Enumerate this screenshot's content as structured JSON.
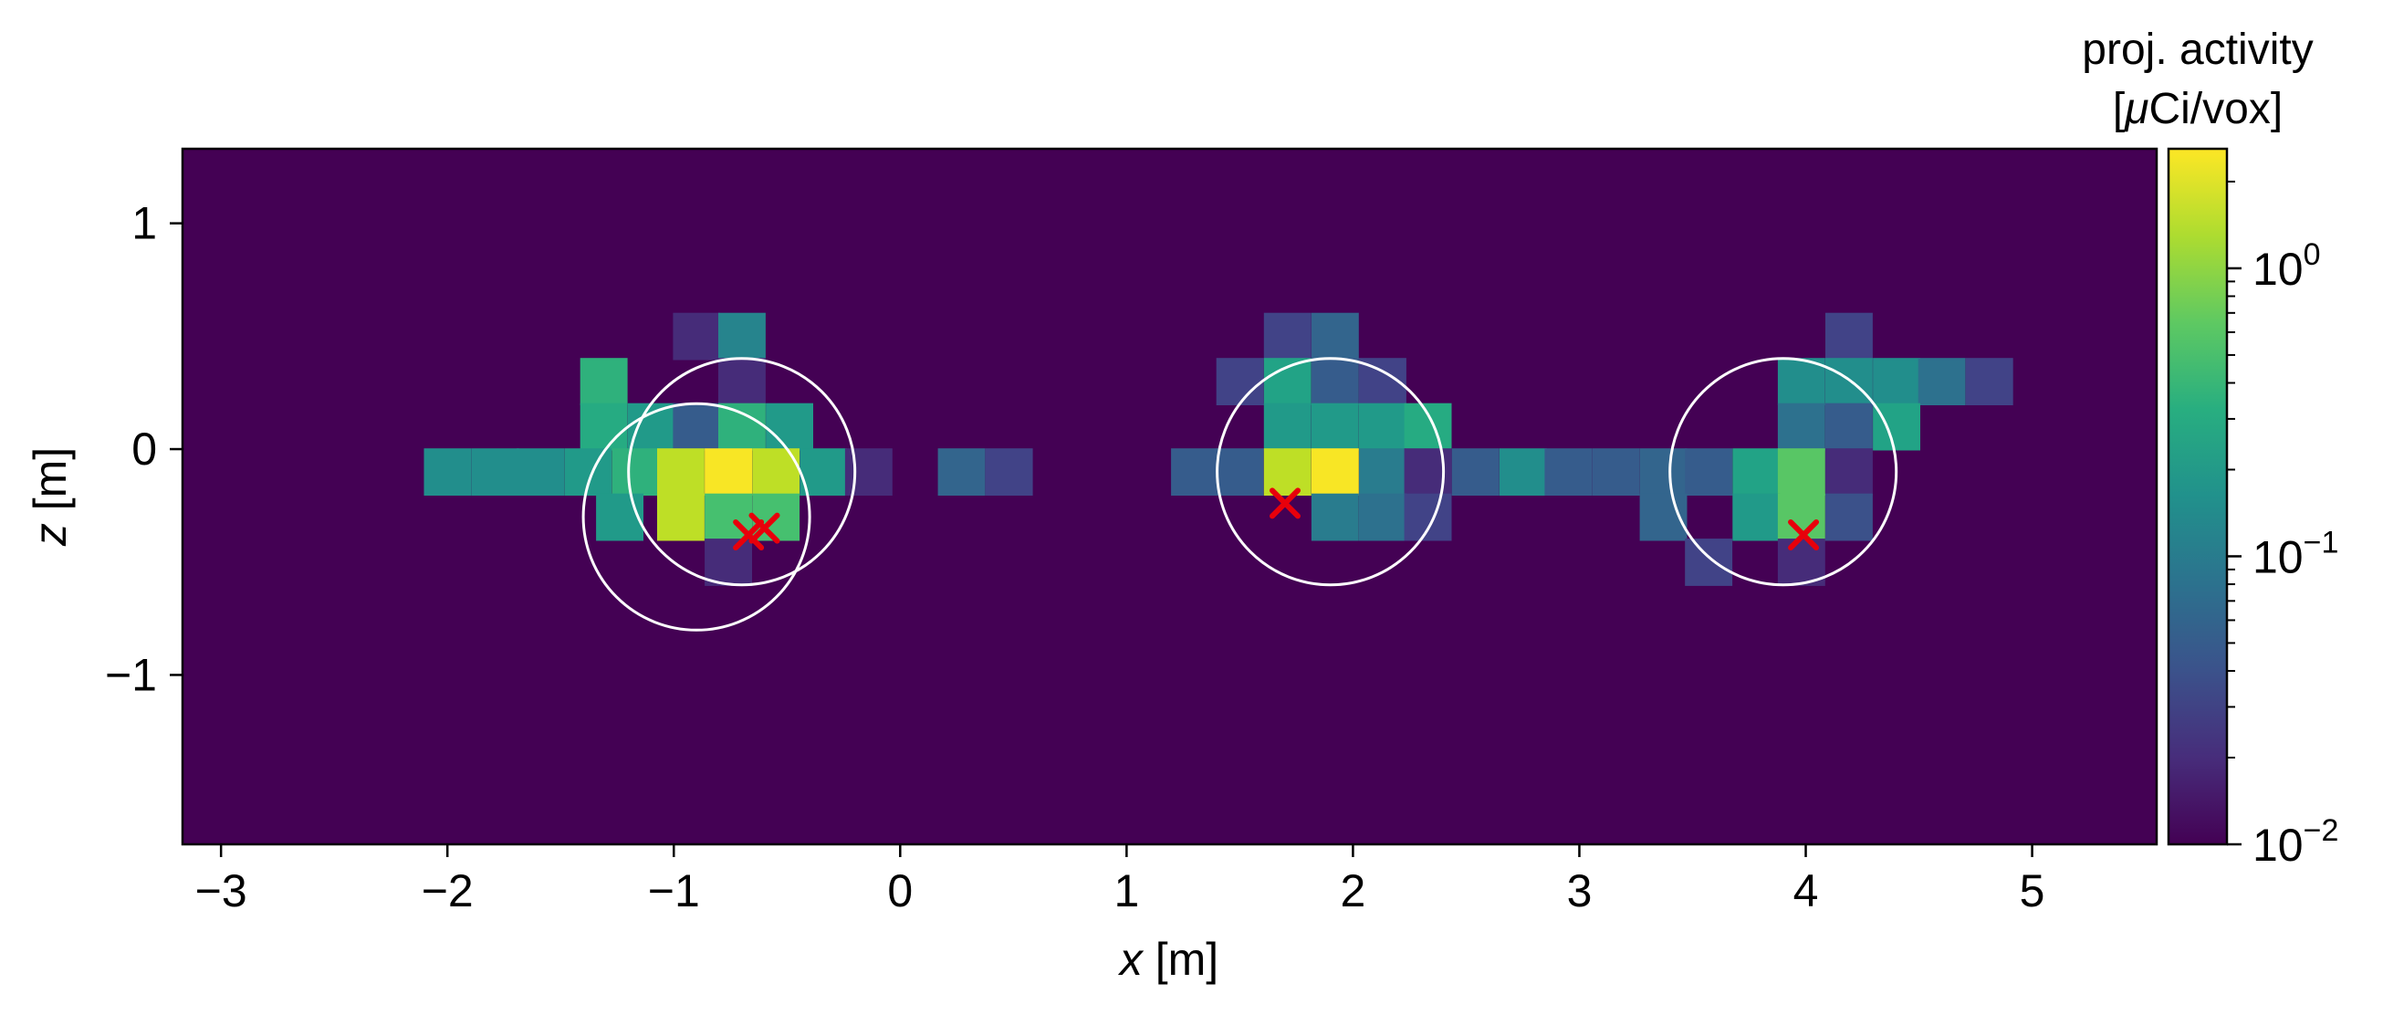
{
  "chart_data": {
    "type": "heatmap",
    "title": "",
    "xlabel_var": "x",
    "xlabel_unit": "[m]",
    "ylabel_var": "z",
    "ylabel_unit": "[m]",
    "xlim": [
      -3.17,
      5.55
    ],
    "ylim": [
      -1.75,
      1.33
    ],
    "xticks": [
      -3,
      -2,
      -1,
      0,
      1,
      2,
      3,
      4,
      5
    ],
    "xtick_labels": [
      "−3",
      "−2",
      "−1",
      "0",
      "1",
      "2",
      "3",
      "4",
      "5"
    ],
    "yticks": [
      1,
      0,
      -1
    ],
    "ytick_labels": [
      "1",
      "0",
      "−1"
    ],
    "grid": false,
    "cell_size_m": 0.207,
    "x_origin_m": -3.17,
    "z_origin_m": -1.75,
    "background_value": 0.01,
    "cells": [
      {
        "x": -0.9,
        "z": 0.5,
        "v": 0.02
      },
      {
        "x": -0.7,
        "z": 0.5,
        "v": 0.12
      },
      {
        "x": -1.31,
        "z": 0.3,
        "v": 0.35
      },
      {
        "x": -0.7,
        "z": 0.3,
        "v": 0.02
      },
      {
        "x": -1.31,
        "z": 0.1,
        "v": 0.3
      },
      {
        "x": -1.1,
        "z": 0.1,
        "v": 0.2
      },
      {
        "x": -0.9,
        "z": 0.1,
        "v": 0.05
      },
      {
        "x": -0.7,
        "z": 0.1,
        "v": 0.35
      },
      {
        "x": -0.49,
        "z": 0.1,
        "v": 0.2
      },
      {
        "x": -2.0,
        "z": -0.1,
        "v": 0.15
      },
      {
        "x": -1.79,
        "z": -0.1,
        "v": 0.15
      },
      {
        "x": -1.59,
        "z": -0.1,
        "v": 0.15
      },
      {
        "x": -1.38,
        "z": -0.1,
        "v": 0.2
      },
      {
        "x": -1.17,
        "z": -0.1,
        "v": 0.35
      },
      {
        "x": -0.97,
        "z": -0.1,
        "v": 1.5
      },
      {
        "x": -0.76,
        "z": -0.1,
        "v": 2.5
      },
      {
        "x": -0.55,
        "z": -0.1,
        "v": 1.5
      },
      {
        "x": -0.34,
        "z": -0.1,
        "v": 0.2
      },
      {
        "x": -0.14,
        "z": -0.1,
        "v": 0.02
      },
      {
        "x": 0.27,
        "z": -0.1,
        "v": 0.06
      },
      {
        "x": 0.48,
        "z": -0.1,
        "v": 0.03
      },
      {
        "x": -1.24,
        "z": -0.3,
        "v": 0.2
      },
      {
        "x": -0.97,
        "z": -0.3,
        "v": 1.5
      },
      {
        "x": -0.76,
        "z": -0.3,
        "v": 0.5
      },
      {
        "x": -0.55,
        "z": -0.3,
        "v": 0.5
      },
      {
        "x": -0.76,
        "z": -0.5,
        "v": 0.02
      },
      {
        "x": 1.71,
        "z": 0.5,
        "v": 0.03
      },
      {
        "x": 1.92,
        "z": 0.5,
        "v": 0.06
      },
      {
        "x": 1.5,
        "z": 0.3,
        "v": 0.03
      },
      {
        "x": 1.71,
        "z": 0.3,
        "v": 0.25
      },
      {
        "x": 1.92,
        "z": 0.3,
        "v": 0.05
      },
      {
        "x": 2.13,
        "z": 0.3,
        "v": 0.03
      },
      {
        "x": 1.71,
        "z": 0.1,
        "v": 0.2
      },
      {
        "x": 1.92,
        "z": 0.1,
        "v": 0.2
      },
      {
        "x": 2.13,
        "z": 0.1,
        "v": 0.2
      },
      {
        "x": 2.33,
        "z": 0.1,
        "v": 0.3
      },
      {
        "x": 1.3,
        "z": -0.1,
        "v": 0.05
      },
      {
        "x": 1.5,
        "z": -0.1,
        "v": 0.05
      },
      {
        "x": 1.71,
        "z": -0.1,
        "v": 1.5
      },
      {
        "x": 1.92,
        "z": -0.1,
        "v": 2.5
      },
      {
        "x": 2.13,
        "z": -0.1,
        "v": 0.1
      },
      {
        "x": 2.33,
        "z": -0.1,
        "v": 0.02
      },
      {
        "x": 2.54,
        "z": -0.1,
        "v": 0.05
      },
      {
        "x": 2.75,
        "z": -0.1,
        "v": 0.15
      },
      {
        "x": 2.95,
        "z": -0.1,
        "v": 0.05
      },
      {
        "x": 3.16,
        "z": -0.1,
        "v": 0.05
      },
      {
        "x": 3.37,
        "z": -0.1,
        "v": 0.06
      },
      {
        "x": 1.92,
        "z": -0.3,
        "v": 0.1
      },
      {
        "x": 2.13,
        "z": -0.3,
        "v": 0.08
      },
      {
        "x": 2.33,
        "z": -0.3,
        "v": 0.03
      },
      {
        "x": 4.19,
        "z": 0.5,
        "v": 0.03
      },
      {
        "x": 3.98,
        "z": 0.3,
        "v": 0.15
      },
      {
        "x": 4.19,
        "z": 0.3,
        "v": 0.15
      },
      {
        "x": 4.4,
        "z": 0.3,
        "v": 0.15
      },
      {
        "x": 4.6,
        "z": 0.3,
        "v": 0.08
      },
      {
        "x": 4.81,
        "z": 0.3,
        "v": 0.03
      },
      {
        "x": 3.98,
        "z": 0.1,
        "v": 0.08
      },
      {
        "x": 4.19,
        "z": 0.1,
        "v": 0.05
      },
      {
        "x": 4.4,
        "z": 0.1,
        "v": 0.25
      },
      {
        "x": 3.57,
        "z": -0.1,
        "v": 0.05
      },
      {
        "x": 3.78,
        "z": -0.1,
        "v": 0.25
      },
      {
        "x": 3.98,
        "z": -0.1,
        "v": 0.6
      },
      {
        "x": 4.19,
        "z": -0.1,
        "v": 0.02
      },
      {
        "x": 3.37,
        "z": -0.3,
        "v": 0.06
      },
      {
        "x": 3.78,
        "z": -0.3,
        "v": 0.2
      },
      {
        "x": 3.98,
        "z": -0.3,
        "v": 0.6
      },
      {
        "x": 4.19,
        "z": -0.3,
        "v": 0.04
      },
      {
        "x": 3.57,
        "z": -0.5,
        "v": 0.03
      },
      {
        "x": 3.98,
        "z": -0.5,
        "v": 0.02
      }
    ],
    "circles": [
      {
        "cx": -0.7,
        "cz": -0.1,
        "r": 0.5
      },
      {
        "cx": -0.9,
        "cz": -0.3,
        "r": 0.5
      },
      {
        "cx": 1.9,
        "cz": -0.1,
        "r": 0.5
      },
      {
        "cx": 3.9,
        "cz": -0.1,
        "r": 0.5
      }
    ],
    "markers": [
      {
        "x": -0.67,
        "z": -0.38
      },
      {
        "x": -0.6,
        "z": -0.35
      },
      {
        "x": 1.7,
        "z": -0.24
      },
      {
        "x": 3.99,
        "z": -0.38
      }
    ],
    "colorbar": {
      "title_line1": "proj. activity",
      "title_line2_pre": "[",
      "title_line2_mu": "μ",
      "title_line2_post": "Ci/vox]",
      "scale": "log",
      "vmin": 0.01,
      "vmax": 2.6,
      "ticks": [
        {
          "value": 1,
          "base": "10",
          "exp": "0"
        },
        {
          "value": 0.1,
          "base": "10",
          "exp": "−1"
        },
        {
          "value": 0.01,
          "base": "10",
          "exp": "−2"
        }
      ],
      "colormap": "viridis"
    },
    "colors": {
      "circle": "#ffffff",
      "marker": "#e8000b",
      "axes": "#000000"
    }
  }
}
